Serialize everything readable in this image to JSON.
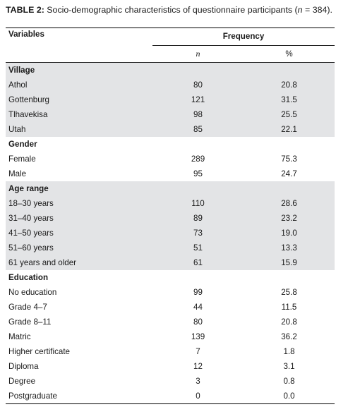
{
  "caption": {
    "label": "TABLE 2:",
    "text_a": " Socio-demographic characteristics of questionnaire participants (",
    "n_symbol": "n",
    "text_b": " = 384)."
  },
  "header": {
    "variables": "Variables",
    "frequency": "Frequency",
    "n": "n",
    "percent": "%"
  },
  "groups": [
    {
      "title": "Village",
      "shaded": true,
      "rows": [
        {
          "label": "Athol",
          "n": "80",
          "pct": "20.8"
        },
        {
          "label": "Gottenburg",
          "n": "121",
          "pct": "31.5"
        },
        {
          "label": "Tlhavekisa",
          "n": "98",
          "pct": "25.5"
        },
        {
          "label": "Utah",
          "n": "85",
          "pct": "22.1"
        }
      ]
    },
    {
      "title": "Gender",
      "shaded": false,
      "rows": [
        {
          "label": "Female",
          "n": "289",
          "pct": "75.3"
        },
        {
          "label": "Male",
          "n": "95",
          "pct": "24.7"
        }
      ]
    },
    {
      "title": "Age range",
      "shaded": true,
      "rows": [
        {
          "label": "18–30 years",
          "n": "110",
          "pct": "28.6"
        },
        {
          "label": "31–40 years",
          "n": "89",
          "pct": "23.2"
        },
        {
          "label": "41–50 years",
          "n": "73",
          "pct": "19.0"
        },
        {
          "label": "51–60 years",
          "n": "51",
          "pct": "13.3"
        },
        {
          "label": "61 years and older",
          "n": "61",
          "pct": "15.9"
        }
      ]
    },
    {
      "title": "Education",
      "shaded": false,
      "rows": [
        {
          "label": "No education",
          "n": "99",
          "pct": "25.8"
        },
        {
          "label": "Grade 4–7",
          "n": "44",
          "pct": "11.5"
        },
        {
          "label": "Grade 8–11",
          "n": "80",
          "pct": "20.8"
        },
        {
          "label": "Matric",
          "n": "139",
          "pct": "36.2"
        },
        {
          "label": "Higher certificate",
          "n": "7",
          "pct": "1.8"
        },
        {
          "label": "Diploma",
          "n": "12",
          "pct": "3.1"
        },
        {
          "label": "Degree",
          "n": "3",
          "pct": "0.8"
        },
        {
          "label": "Postgraduate",
          "n": "0",
          "pct": "0.0"
        }
      ]
    }
  ],
  "colors": {
    "shade": "#e3e4e6",
    "rule": "#000000"
  }
}
